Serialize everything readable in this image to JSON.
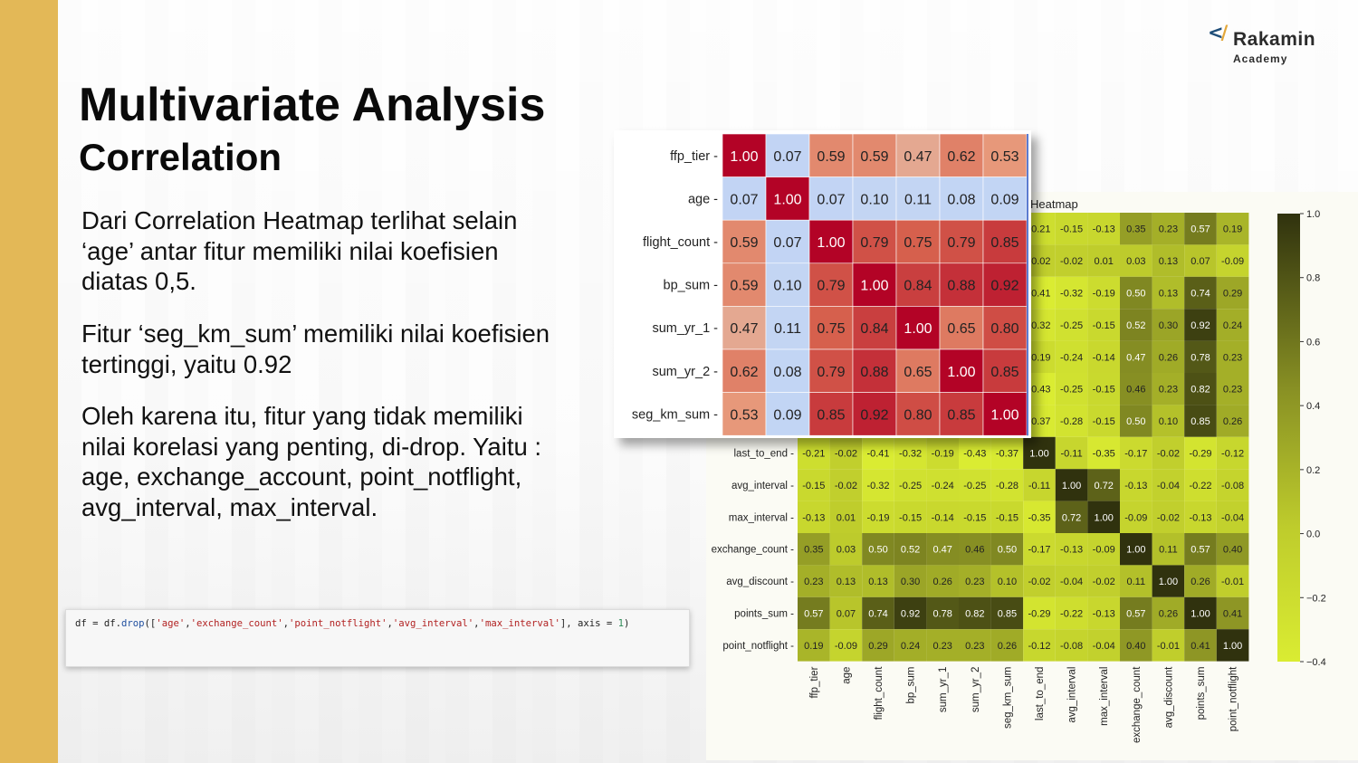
{
  "brand": {
    "name": "Rakamin",
    "sub": "Academy"
  },
  "slide": {
    "title": "Multivariate Analysis",
    "subtitle": "Correlation",
    "paragraphs": [
      "Dari Correlation Heatmap terlihat selain ‘age’ antar fitur memiliki nilai koefisien diatas 0,5.",
      "Fitur ‘seg_km_sum’ memiliki nilai koefisien tertinggi, yaitu 0.92",
      "Oleh karena itu, fitur yang tidak memiliki nilai korelasi yang penting, di-drop. Yaitu : age, exchange_account, point_notflight, avg_interval, max_interval."
    ],
    "code": "df = df.drop(['age','exchange_count','point_notflight','avg_interval','max_interval'], axis = 1)"
  },
  "chart_data": [
    {
      "type": "heatmap",
      "title": "Heatmap",
      "colormap": "yellow-green to dark olive",
      "colorbar": {
        "range": [
          -0.4,
          1.0
        ],
        "ticks": [
          "1.0",
          "0.8",
          "0.6",
          "0.4",
          "0.2",
          "0.0",
          "−0.2",
          "−0.4"
        ]
      },
      "labels": [
        "ffp_tier",
        "age",
        "flight_count",
        "bp_sum",
        "sum_yr_1",
        "sum_yr_2",
        "seg_km_sum",
        "last_to_end",
        "avg_interval",
        "max_interval",
        "exchange_count",
        "avg_discount",
        "points_sum",
        "point_notflight"
      ],
      "values": [
        [
          1.0,
          0.07,
          0.59,
          0.59,
          0.47,
          0.62,
          0.53,
          -0.21,
          -0.15,
          -0.13,
          0.35,
          0.23,
          0.57,
          0.19
        ],
        [
          0.07,
          1.0,
          0.07,
          0.1,
          0.11,
          0.08,
          0.09,
          -0.02,
          -0.02,
          0.01,
          0.03,
          0.13,
          0.07,
          -0.09
        ],
        [
          0.59,
          0.07,
          1.0,
          0.79,
          0.75,
          0.79,
          0.85,
          -0.41,
          -0.32,
          -0.19,
          0.5,
          0.13,
          0.74,
          0.29
        ],
        [
          0.59,
          0.1,
          0.79,
          1.0,
          0.84,
          0.88,
          0.92,
          -0.32,
          -0.25,
          -0.15,
          0.52,
          0.3,
          0.92,
          0.24
        ],
        [
          0.47,
          0.11,
          0.75,
          0.84,
          1.0,
          0.65,
          0.8,
          -0.19,
          -0.24,
          -0.14,
          0.47,
          0.26,
          0.78,
          0.23
        ],
        [
          0.62,
          0.08,
          0.79,
          0.88,
          0.65,
          1.0,
          0.85,
          -0.43,
          -0.25,
          -0.15,
          0.46,
          0.23,
          0.82,
          0.23
        ],
        [
          0.53,
          0.09,
          0.85,
          0.92,
          0.8,
          0.85,
          1.0,
          -0.37,
          -0.28,
          -0.15,
          0.5,
          0.1,
          0.85,
          0.26
        ],
        [
          -0.21,
          -0.02,
          -0.41,
          -0.32,
          -0.19,
          -0.43,
          -0.37,
          1.0,
          -0.11,
          -0.35,
          -0.17,
          -0.02,
          -0.29,
          -0.12
        ],
        [
          -0.15,
          -0.02,
          -0.32,
          -0.25,
          -0.24,
          -0.25,
          -0.28,
          -0.11,
          1.0,
          0.72,
          -0.13,
          -0.04,
          -0.22,
          -0.08
        ],
        [
          -0.13,
          0.01,
          -0.19,
          -0.15,
          -0.14,
          -0.15,
          -0.15,
          -0.35,
          0.72,
          1.0,
          -0.09,
          -0.02,
          -0.13,
          -0.04
        ],
        [
          0.35,
          0.03,
          0.5,
          0.52,
          0.47,
          0.46,
          0.5,
          -0.17,
          -0.13,
          -0.09,
          1.0,
          0.11,
          0.57,
          0.4
        ],
        [
          0.23,
          0.13,
          0.13,
          0.3,
          0.26,
          0.23,
          0.1,
          -0.02,
          -0.04,
          -0.02,
          0.11,
          1.0,
          0.26,
          -0.01
        ],
        [
          0.57,
          0.07,
          0.74,
          0.92,
          0.78,
          0.82,
          0.85,
          -0.29,
          -0.22,
          -0.13,
          0.57,
          0.26,
          1.0,
          0.41
        ],
        [
          0.19,
          -0.09,
          0.29,
          0.24,
          0.23,
          0.23,
          0.26,
          -0.12,
          -0.08,
          -0.04,
          0.4,
          -0.01,
          0.41,
          1.0
        ]
      ]
    },
    {
      "type": "heatmap",
      "colormap": "coolwarm",
      "labels": [
        "ffp_tier",
        "age",
        "flight_count",
        "bp_sum",
        "sum_yr_1",
        "sum_yr_2",
        "seg_km_sum"
      ],
      "values": [
        [
          1.0,
          0.07,
          0.59,
          0.59,
          0.47,
          0.62,
          0.53
        ],
        [
          0.07,
          1.0,
          0.07,
          0.1,
          0.11,
          0.08,
          0.09
        ],
        [
          0.59,
          0.07,
          1.0,
          0.79,
          0.75,
          0.79,
          0.85
        ],
        [
          0.59,
          0.1,
          0.79,
          1.0,
          0.84,
          0.88,
          0.92
        ],
        [
          0.47,
          0.11,
          0.75,
          0.84,
          1.0,
          0.65,
          0.8
        ],
        [
          0.62,
          0.08,
          0.79,
          0.88,
          0.65,
          1.0,
          0.85
        ],
        [
          0.53,
          0.09,
          0.85,
          0.92,
          0.8,
          0.85,
          1.0
        ]
      ]
    }
  ]
}
